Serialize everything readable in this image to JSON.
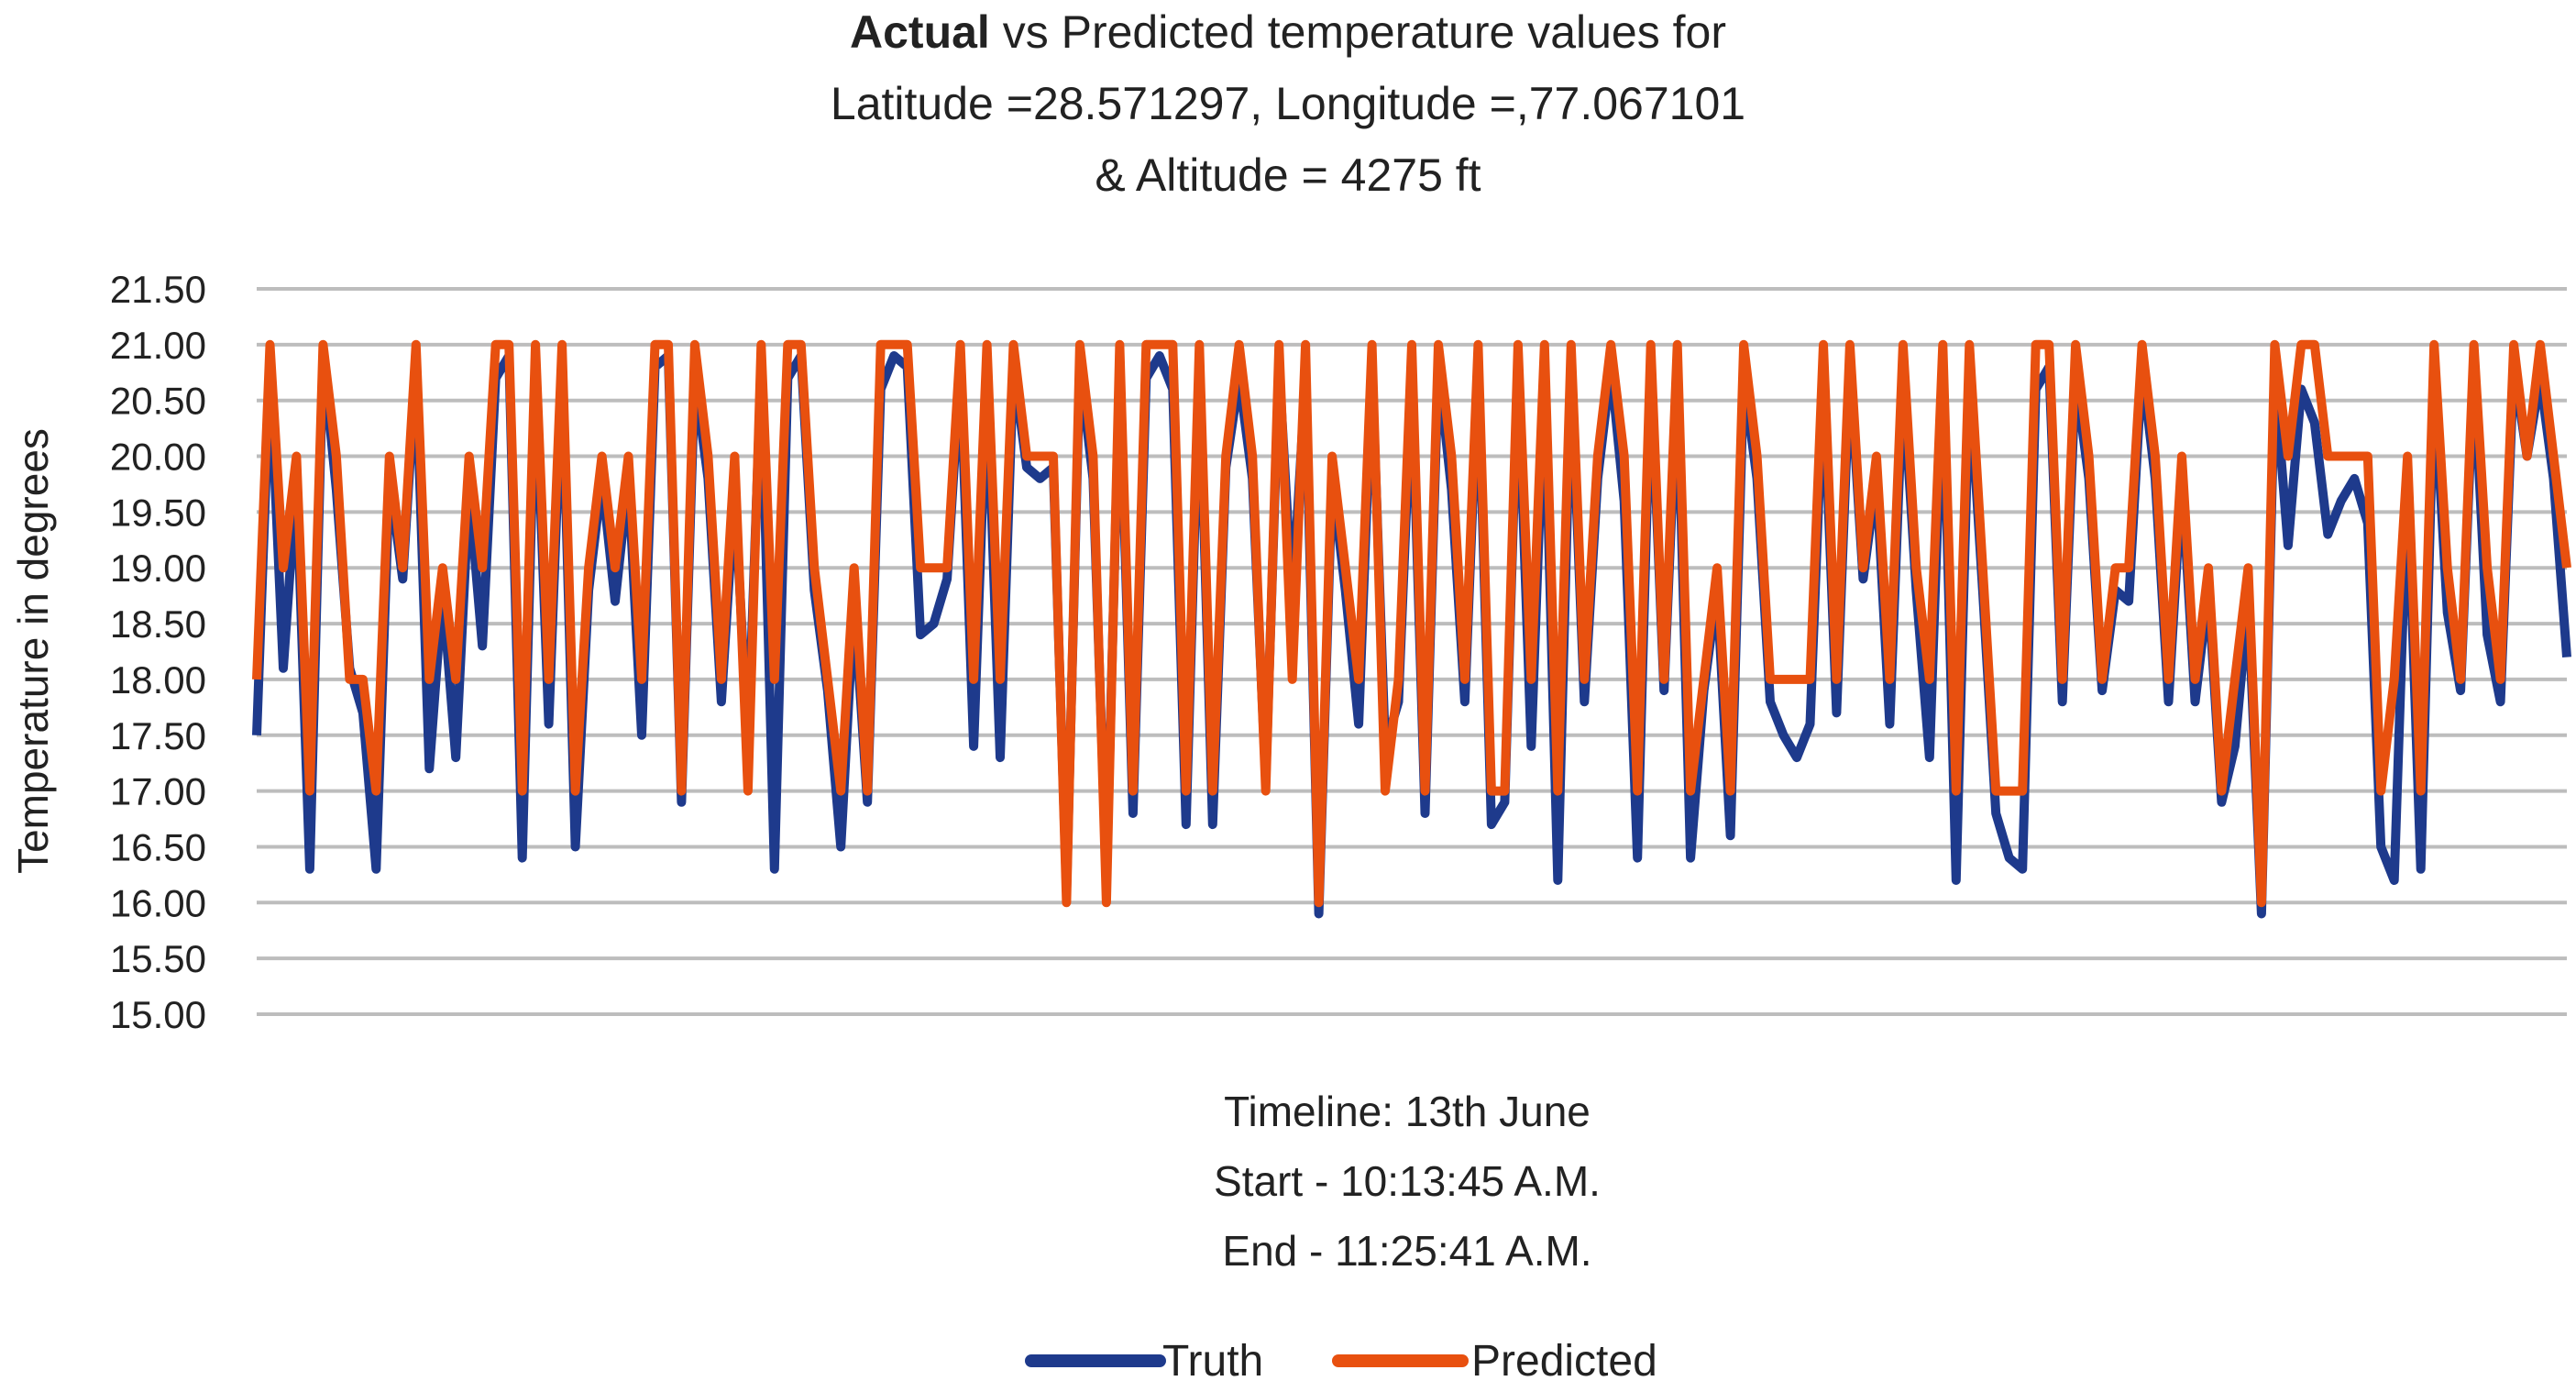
{
  "chart_data": {
    "type": "line",
    "title": {
      "bold_part": "Actual",
      "rest": " vs Predicted temperature  values for",
      "line2": "Latitude =28.571297, Longitude =,77.067101",
      "line3": "& Altitude = 4275 ft"
    },
    "ylabel": "Temperature  in degrees",
    "xlabel": [
      "Timeline: 13th June",
      "Start - 10:13:45 A.M.",
      "End - 11:25:41 A.M."
    ],
    "ylim": [
      15.0,
      21.5
    ],
    "yticks": [
      "21.50",
      "21.00",
      "20.50",
      "20.00",
      "19.50",
      "19.00",
      "18.50",
      "18.00",
      "17.50",
      "17.00",
      "16.50",
      "16.00",
      "15.50",
      "15.00"
    ],
    "grid": true,
    "legend_position": "bottom",
    "series": [
      {
        "name": "Truth",
        "color": "#1e3a8c",
        "values": [
          17.5,
          20.8,
          18.1,
          19.8,
          16.3,
          20.9,
          19.7,
          18.1,
          17.7,
          16.3,
          19.8,
          18.9,
          20.8,
          17.2,
          18.8,
          17.3,
          19.7,
          18.3,
          20.7,
          20.9,
          16.4,
          20.8,
          17.6,
          20.8,
          16.5,
          18.8,
          19.8,
          18.7,
          19.8,
          17.5,
          20.8,
          20.9,
          16.9,
          20.7,
          19.8,
          17.8,
          19.7,
          17.4,
          20.8,
          16.3,
          20.7,
          20.9,
          18.8,
          17.9,
          16.5,
          18.7,
          16.9,
          20.6,
          20.9,
          20.8,
          18.4,
          18.5,
          18.9,
          20.8,
          17.4,
          20.7,
          17.3,
          20.8,
          19.9,
          19.8,
          19.9,
          16.1,
          20.8,
          19.8,
          16.2,
          20.8,
          16.8,
          20.7,
          20.9,
          20.6,
          16.7,
          20.8,
          16.7,
          19.9,
          20.7,
          19.8,
          17.1,
          20.8,
          18.7,
          20.7,
          15.9,
          19.8,
          18.8,
          17.6,
          20.8,
          17.4,
          17.8,
          20.7,
          16.8,
          20.8,
          19.7,
          17.8,
          20.8,
          16.7,
          16.9,
          20.8,
          17.4,
          20.7,
          16.2,
          20.8,
          17.8,
          19.8,
          20.8,
          19.6,
          16.4,
          20.8,
          17.9,
          20.7,
          16.4,
          17.9,
          18.8,
          16.6,
          20.7,
          19.8,
          17.8,
          17.5,
          17.3,
          17.6,
          20.7,
          17.7,
          20.8,
          18.9,
          19.8,
          17.6,
          20.7,
          18.8,
          17.3,
          20.8,
          16.2,
          20.7,
          18.8,
          16.8,
          16.4,
          16.3,
          20.6,
          20.8,
          17.8,
          20.7,
          19.8,
          17.9,
          18.8,
          18.7,
          20.8,
          19.8,
          17.8,
          19.8,
          17.8,
          18.8,
          16.9,
          17.4,
          18.7,
          15.9,
          20.7,
          19.2,
          20.6,
          20.3,
          19.3,
          19.6,
          19.8,
          19.4,
          16.5,
          16.2,
          19.8,
          16.3,
          20.7,
          18.6,
          17.9,
          20.8,
          18.4,
          17.8,
          20.8,
          20.0,
          20.7,
          19.8,
          18.2
        ]
      },
      {
        "name": "Predicted",
        "color": "#e8500f",
        "values": [
          18,
          21,
          19,
          20,
          17,
          21,
          20,
          18,
          18,
          17,
          20,
          19,
          21,
          18,
          19,
          18,
          20,
          19,
          21,
          21,
          17,
          21,
          18,
          21,
          17,
          19,
          20,
          19,
          20,
          18,
          21,
          21,
          17,
          21,
          20,
          18,
          20,
          17,
          21,
          18,
          21,
          21,
          19,
          18,
          17,
          19,
          17,
          21,
          21,
          21,
          19,
          19,
          19,
          21,
          18,
          21,
          18,
          21,
          20,
          20,
          20,
          16,
          21,
          20,
          16,
          21,
          17,
          21,
          21,
          21,
          17,
          21,
          17,
          20,
          21,
          20,
          17,
          21,
          18,
          21,
          16,
          20,
          19,
          18,
          21,
          17,
          18,
          21,
          17,
          21,
          20,
          18,
          21,
          17,
          17,
          21,
          18,
          21,
          17,
          21,
          18,
          20,
          21,
          20,
          17,
          21,
          18,
          21,
          17,
          18,
          19,
          17,
          21,
          20,
          18,
          18,
          18,
          18,
          21,
          18,
          21,
          19,
          20,
          18,
          21,
          19,
          18,
          21,
          17,
          21,
          19,
          17,
          17,
          17,
          21,
          21,
          18,
          21,
          20,
          18,
          19,
          19,
          21,
          20,
          18,
          20,
          18,
          19,
          17,
          18,
          19,
          16,
          21,
          20,
          21,
          21,
          20,
          20,
          20,
          20,
          17,
          18,
          20,
          17,
          21,
          19,
          18,
          21,
          19,
          18,
          21,
          20,
          21,
          20,
          19
        ]
      }
    ]
  }
}
